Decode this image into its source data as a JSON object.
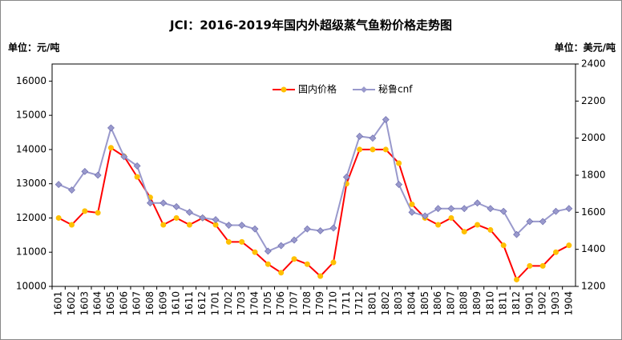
{
  "chart_data": {
    "type": "line",
    "title": "JCI：2016-2019年国内外超级蒸气鱼粉价格走势图",
    "ylabel": "单位：元/吨",
    "y2label": "单位：美元/吨",
    "categories": [
      "1601",
      "1602",
      "1603",
      "1604",
      "1605",
      "1606",
      "1607",
      "1608",
      "1609",
      "1610",
      "1611",
      "1612",
      "1701",
      "1702",
      "1703",
      "1704",
      "1705",
      "1706",
      "1707",
      "1708",
      "1709",
      "1710",
      "1711",
      "1712",
      "1801",
      "1802",
      "1803",
      "1804",
      "1805",
      "1806",
      "1807",
      "1808",
      "1809",
      "1810",
      "1811",
      "1812",
      "1901",
      "1902",
      "1903",
      "1904"
    ],
    "series": [
      {
        "name": "国内价格",
        "color": "#ff0000",
        "marker_color": "#ffc000",
        "marker": "circle",
        "values": [
          12000,
          11800,
          12200,
          12150,
          14050,
          13800,
          13200,
          12600,
          11800,
          12000,
          11800,
          12000,
          11800,
          11300,
          11300,
          11000,
          10650,
          10400,
          10800,
          10650,
          10300,
          10700,
          13000,
          14000,
          14000,
          14000,
          13600,
          12400,
          12000,
          11800,
          12000,
          11600,
          11800,
          11650,
          11200,
          10200,
          10600,
          10600,
          11000,
          11200
        ]
      },
      {
        "name": "秘鲁cnf",
        "color": "#9999cc",
        "marker_color": "#9999cc",
        "marker": "diamond",
        "axis": "y2",
        "values": [
          1750,
          1720,
          1820,
          1800,
          2055,
          1900,
          1850,
          1650,
          1650,
          1630,
          1600,
          1570,
          1560,
          1530,
          1530,
          1510,
          1390,
          1420,
          1450,
          1510,
          1500,
          1515,
          1790,
          2010,
          2000,
          2100,
          1750,
          1600,
          1580,
          1620,
          1620,
          1620,
          1650,
          1620,
          1605,
          1480,
          1550,
          1550,
          1605,
          1620
        ]
      }
    ],
    "ylim": [
      10000,
      16500
    ],
    "yticks": [
      10000,
      11000,
      12000,
      13000,
      14000,
      15000,
      16000
    ],
    "y2lim": [
      1200,
      2400
    ],
    "y2ticks": [
      1200,
      1400,
      1600,
      1800,
      2000,
      2200,
      2400
    ],
    "legend": "top"
  }
}
